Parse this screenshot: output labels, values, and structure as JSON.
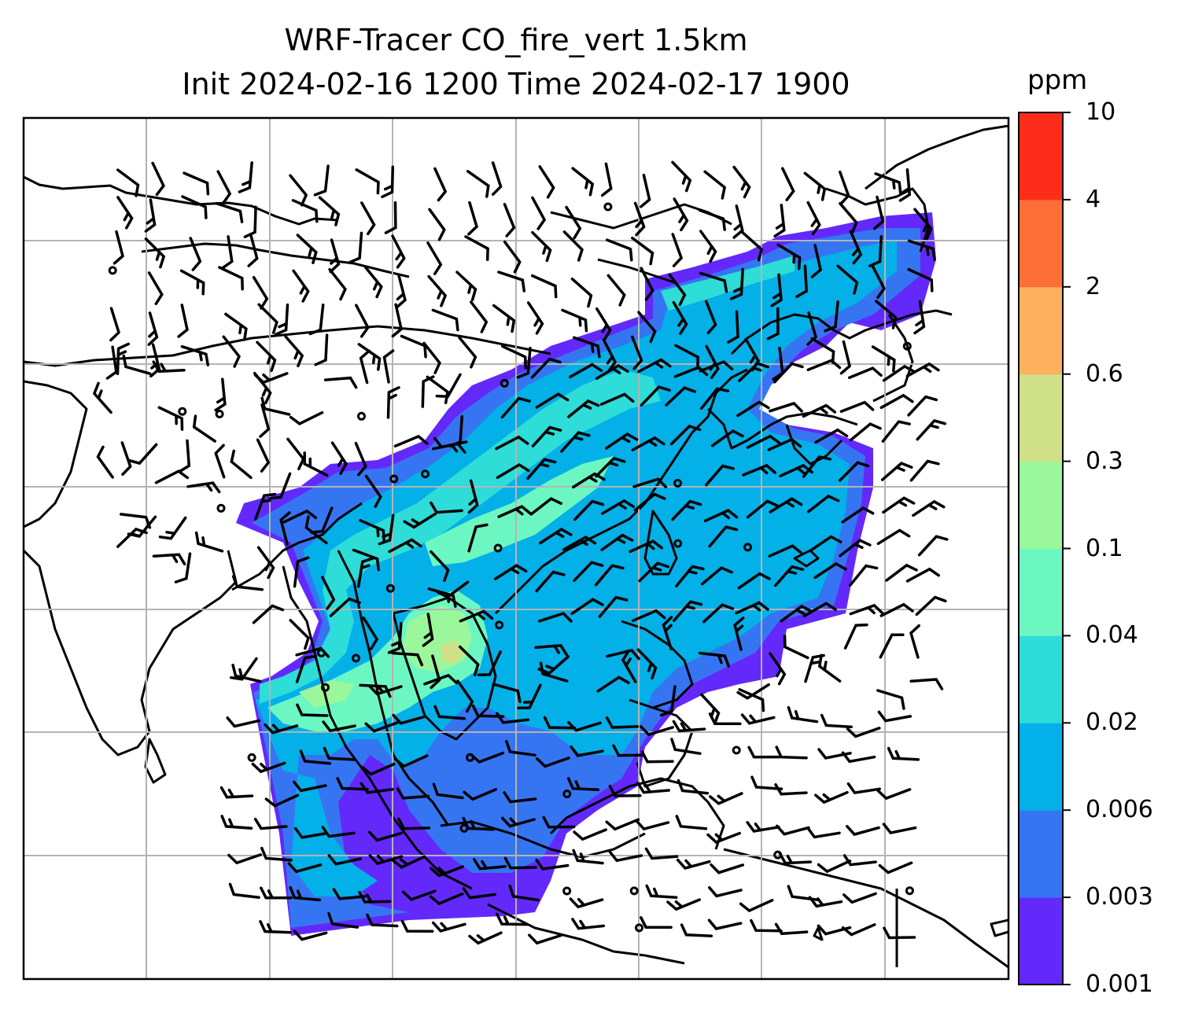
{
  "title": {
    "line1": "WRF-Tracer CO_fire_vert 1.5km",
    "line2": "Init 2024-02-16 1200 Time 2024-02-17 1900"
  },
  "colorbar": {
    "unit": "ppm",
    "ticks": [
      "0.001",
      "0.003",
      "0.006",
      "0.02",
      "0.04",
      "0.1",
      "0.3",
      "0.6",
      "2",
      "4",
      "10"
    ],
    "colors": [
      "#6329fb",
      "#3675f2",
      "#04b0e8",
      "#2edcd8",
      "#6cf7c2",
      "#9bf79b",
      "#cfe089",
      "#feb05f",
      "#fe6e38",
      "#fd2c1a"
    ]
  },
  "map": {
    "grid_color": "#b4b4b4",
    "coastline_color": "#000000",
    "wind_barb_color": "#000000"
  }
}
